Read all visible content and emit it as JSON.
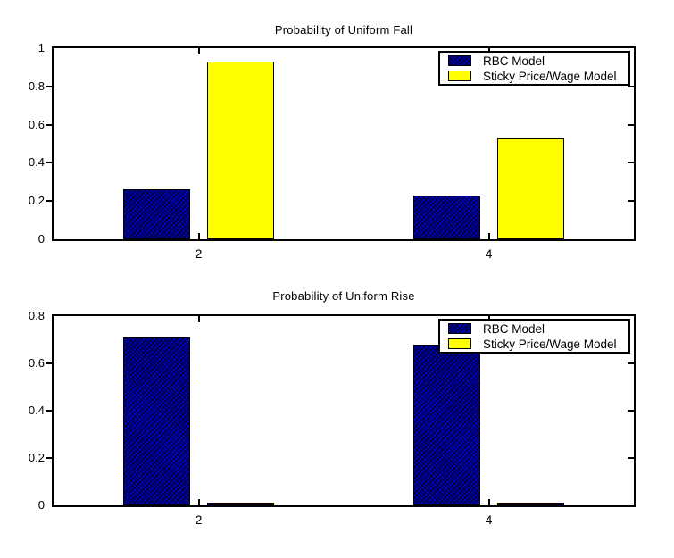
{
  "figure": {
    "background": "#ffffff"
  },
  "colors": {
    "rbc_fill": "#0000d2",
    "rbc_rendered_average": "#00107e",
    "sticky_fill": "#ffff00",
    "bar_edge": "#000000",
    "axis": "#000000",
    "text": "#000000",
    "legend_background": "#ffffff"
  },
  "chart_data": [
    {
      "type": "bar",
      "title": "Probability of Uniform Fall",
      "categories": [
        "2",
        "4"
      ],
      "series": [
        {
          "name": "RBC Model",
          "color_key": "rbc",
          "values": [
            0.26,
            0.23
          ]
        },
        {
          "name": "Sticky Price/Wage Model",
          "color_key": "sticky",
          "values": [
            0.93,
            0.53
          ]
        }
      ],
      "xlim": [
        1,
        5
      ],
      "ylim": [
        0,
        1
      ],
      "yticks": [
        0,
        0.2,
        0.4,
        0.6,
        0.8,
        1
      ],
      "grid": false,
      "legend_position": "top-right"
    },
    {
      "type": "bar",
      "title": "Probability of Uniform Rise",
      "categories": [
        "2",
        "4"
      ],
      "series": [
        {
          "name": "RBC Model",
          "color_key": "rbc",
          "values": [
            0.71,
            0.68
          ]
        },
        {
          "name": "Sticky Price/Wage Model",
          "color_key": "sticky",
          "values": [
            0.005,
            0.005
          ]
        }
      ],
      "xlim": [
        1,
        5
      ],
      "ylim": [
        0,
        0.8
      ],
      "yticks": [
        0,
        0.2,
        0.4,
        0.6,
        0.8
      ],
      "grid": false,
      "legend_position": "top-right"
    }
  ]
}
